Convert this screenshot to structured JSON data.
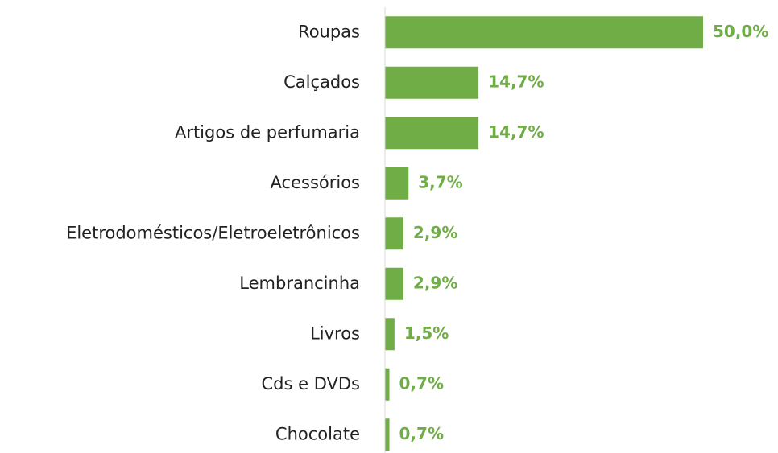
{
  "chart_data": {
    "type": "bar",
    "orientation": "horizontal",
    "categories": [
      "Roupas",
      "Calçados",
      "Artigos de perfumaria",
      "Acessórios",
      "Eletrodomésticos/Eletroeletrônicos",
      "Lembrancinha",
      "Livros",
      "Cds e DVDs",
      "Chocolate"
    ],
    "values": [
      50.0,
      14.7,
      14.7,
      3.7,
      2.9,
      2.9,
      1.5,
      0.7,
      0.7
    ],
    "value_labels": [
      "50,0%",
      "14,7%",
      "14,7%",
      "3,7%",
      "2,9%",
      "2,9%",
      "1,5%",
      "0,7%",
      "0,7%"
    ],
    "color": "#70ad47"
  }
}
